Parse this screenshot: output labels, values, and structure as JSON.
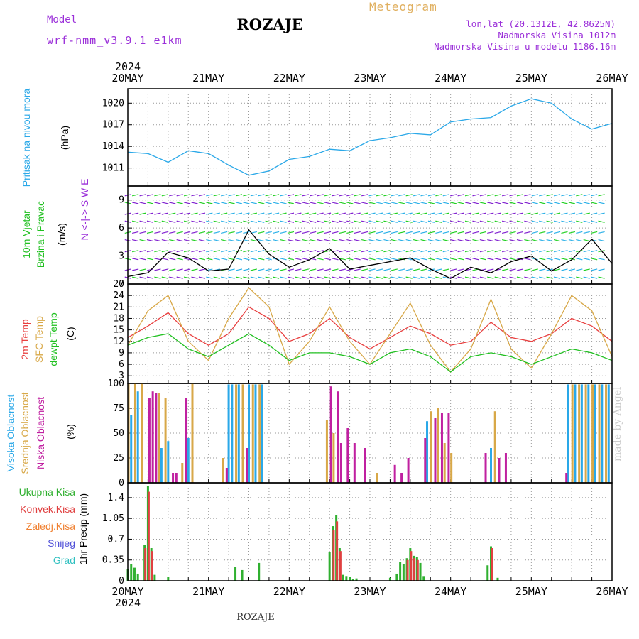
{
  "header": {
    "title": "ROZAJE",
    "model_label": "Model",
    "model_name": "wrf-nmm_v3.9.1 e1km",
    "meteogram": "Meteogram",
    "lonlat": "lon,lat (20.1312E, 42.8625N)",
    "elevation": "Nadmorska Visina 1012m",
    "model_elevation": "Nadmorska Visina u modelu 1186.16m"
  },
  "footer": {
    "station": "ROZAJE",
    "credit": "made by Angel"
  },
  "colors": {
    "pressure": "#2aa8e8",
    "temp2m": "#e84040",
    "sfctemp": "#d8a848",
    "dewpt": "#20c020",
    "high": "#2aa8e8",
    "mid": "#d8a848",
    "low": "#c020a0",
    "total": "#30b030",
    "conv": "#e04040",
    "frozen": "#f08030",
    "snow": "#5050d8",
    "grad": "#30c0c0"
  },
  "chart_data": {
    "type": "meteogram",
    "year": "2024",
    "dates": [
      "20MAY",
      "21MAY",
      "22MAY",
      "23MAY",
      "24MAY",
      "25MAY",
      "26MAY"
    ],
    "x_unit": "hours since 20MAY 00UTC",
    "panels": [
      {
        "id": "pressure",
        "type": "line",
        "ylabel": "Pritisak na nivou mora",
        "unit": "(hPa)",
        "ylim": [
          1008.5,
          1022
        ],
        "yticks": [
          1011,
          1014,
          1017,
          1020
        ],
        "series": [
          {
            "name": "Pritisak na nivou mora",
            "color": "#2aa8e8",
            "x": [
              0,
              6,
              12,
              18,
              24,
              30,
              36,
              42,
              48,
              54,
              60,
              66,
              72,
              78,
              84,
              90,
              96,
              102,
              108,
              114,
              120,
              126,
              132,
              138,
              144
            ],
            "y": [
              1013.2,
              1013.0,
              1011.8,
              1013.4,
              1013.0,
              1011.4,
              1010.0,
              1010.6,
              1012.2,
              1012.6,
              1013.6,
              1013.4,
              1014.8,
              1015.2,
              1015.8,
              1015.6,
              1017.4,
              1017.8,
              1018.0,
              1019.6,
              1020.6,
              1020.0,
              1017.8,
              1016.4,
              1017.2
            ]
          }
        ]
      },
      {
        "id": "wind",
        "type": "line+barbs",
        "ylabel": "10m Vjetar",
        "ylabel2": "Brzina i Pravac",
        "unit": "(m/s)",
        "compass": "N <-|-> S  W  E",
        "ylim": [
          0,
          10.5
        ],
        "yticks": [
          0,
          3,
          6,
          9
        ],
        "series": [
          {
            "name": "Brzina",
            "color": "#000000",
            "x": [
              0,
              6,
              12,
              18,
              24,
              30,
              36,
              42,
              48,
              54,
              60,
              66,
              72,
              78,
              84,
              90,
              96,
              102,
              108,
              114,
              120,
              126,
              132,
              138,
              144
            ],
            "y": [
              0.8,
              1.2,
              3.4,
              2.8,
              1.4,
              1.6,
              5.8,
              3.2,
              1.8,
              2.6,
              3.8,
              1.6,
              2.0,
              2.4,
              2.8,
              1.6,
              0.6,
              1.8,
              1.2,
              2.4,
              3.0,
              1.4,
              2.6,
              4.8,
              2.2
            ]
          }
        ]
      },
      {
        "id": "temperature",
        "type": "line",
        "labels": [
          "2m Temp",
          "SFC Temp",
          "dewpt Temp"
        ],
        "unit": "(C)",
        "ylim": [
          1,
          27
        ],
        "yticks": [
          3,
          6,
          9,
          12,
          15,
          18,
          21,
          24,
          27
        ],
        "x": [
          0,
          6,
          12,
          18,
          24,
          30,
          36,
          42,
          48,
          54,
          60,
          66,
          72,
          78,
          84,
          90,
          96,
          102,
          108,
          114,
          120,
          126,
          132,
          138,
          144
        ],
        "series": [
          {
            "name": "2m Temp",
            "color": "#e84040",
            "y": [
              13,
              16,
              19.5,
              14,
              11,
              14,
              21,
              18,
              12,
              14,
              18,
              13,
              10,
              13,
              16,
              14,
              11,
              12,
              17,
              13,
              12,
              14,
              18,
              16,
              12
            ]
          },
          {
            "name": "SFC Temp",
            "color": "#d8a848",
            "y": [
              11,
              20,
              24,
              12,
              7,
              18,
              26,
              21,
              6,
              12,
              21,
              12,
              6,
              14,
              22,
              11,
              4,
              10,
              23,
              10,
              5,
              14,
              24,
              20,
              8
            ]
          },
          {
            "name": "dewpt Temp",
            "color": "#20c020",
            "y": [
              11,
              13,
              14,
              10,
              8,
              11,
              14,
              11,
              7,
              9,
              9,
              8,
              6,
              9,
              10,
              8,
              4,
              8,
              9,
              8,
              6,
              8,
              10,
              9,
              7
            ]
          }
        ]
      },
      {
        "id": "clouds",
        "type": "bar",
        "labels": [
          "Visoka Oblacnost",
          "Srednja Oblacnost",
          "Niska Oblacnost"
        ],
        "unit": "(%)",
        "ylim": [
          0,
          100
        ],
        "yticks": [
          0,
          25,
          50,
          75,
          100
        ],
        "series": [
          {
            "name": "Visoka Oblacnost",
            "color": "#2aa8e8",
            "x": [
              1,
              3,
              10,
              12,
              18,
              30,
              31,
              33,
              36,
              38,
              40,
              89,
              108,
              131,
              133,
              135,
              137,
              139,
              141,
              143
            ],
            "y": [
              68,
              92,
              35,
              42,
              45,
              99,
              99,
              99,
              99,
              99,
              99,
              62,
              35,
              99,
              99,
              99,
              99,
              99,
              99,
              99
            ]
          },
          {
            "name": "Srednja Oblacnost",
            "color": "#d8a848",
            "x": [
              0,
              2,
              4,
              9,
              11,
              16,
              19,
              28,
              32,
              34,
              37,
              39,
              59,
              61,
              74,
              90,
              92,
              94,
              96,
              109,
              132,
              134,
              136,
              138,
              140,
              142
            ],
            "y": [
              100,
              100,
              100,
              90,
              85,
              20,
              100,
              25,
              99,
              99,
              99,
              99,
              63,
              50,
              10,
              72,
              75,
              40,
              30,
              72,
              99,
              99,
              99,
              99,
              99,
              99
            ]
          },
          {
            "name": "Niska Oblacnost",
            "color": "#c020a0",
            "x": [
              6,
              7,
              8,
              13,
              14,
              17,
              29,
              35,
              60,
              62,
              63,
              65,
              67,
              70,
              79,
              81,
              83,
              88,
              91,
              93,
              95,
              106,
              110,
              112,
              130
            ],
            "y": [
              85,
              92,
              90,
              10,
              10,
              85,
              15,
              35,
              97,
              92,
              40,
              55,
              40,
              35,
              18,
              10,
              25,
              45,
              65,
              70,
              70,
              30,
              25,
              30,
              10
            ]
          }
        ]
      },
      {
        "id": "precip",
        "type": "bar",
        "labels": [
          "Ukupna Kisa",
          "Konvek.Kisa",
          "Zaledj.Kisa",
          "Snijeg",
          "Grad"
        ],
        "unit": "1hr Precip (mm)",
        "ylim": [
          0,
          1.65
        ],
        "yticks": [
          0,
          0.35,
          0.7,
          1.05,
          1.4
        ],
        "series": [
          {
            "name": "Ukupna Kisa",
            "color": "#30b030",
            "x": [
              0,
              1,
              2,
              3,
              5,
              6,
              7,
              8,
              12,
              32,
              34,
              39,
              60,
              61,
              62,
              63,
              64,
              65,
              66,
              67,
              68,
              78,
              80,
              81,
              82,
              83,
              84,
              85,
              86,
              87,
              88,
              107,
              108,
              110
            ],
            "y": [
              0.2,
              0.28,
              0.22,
              0.12,
              0.6,
              1.6,
              0.55,
              0.1,
              0.06,
              0.23,
              0.18,
              0.3,
              0.48,
              0.92,
              1.1,
              0.55,
              0.1,
              0.08,
              0.06,
              0.03,
              0.04,
              0.05,
              0.12,
              0.32,
              0.28,
              0.38,
              0.55,
              0.42,
              0.4,
              0.3,
              0.08,
              0.26,
              0.58,
              0.05
            ]
          },
          {
            "name": "Konvek.Kisa",
            "color": "#e04040",
            "x": [
              5,
              6,
              7,
              61,
              62,
              63,
              83,
              84,
              85,
              86,
              108
            ],
            "y": [
              0.55,
              1.5,
              0.5,
              0.85,
              1.0,
              0.5,
              0.35,
              0.5,
              0.38,
              0.35,
              0.55
            ]
          }
        ]
      }
    ]
  }
}
